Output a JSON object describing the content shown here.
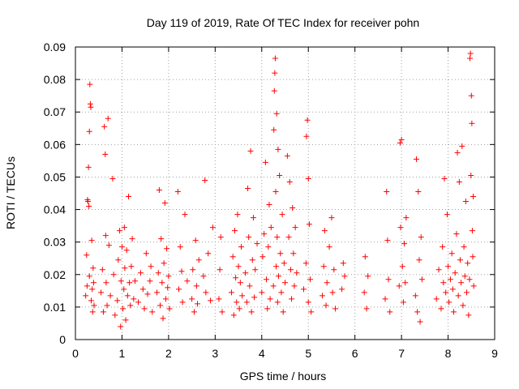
{
  "chart_data": {
    "type": "scatter",
    "title": "Day 119 of 2019, Rate Of TEC Index for receiver pohn",
    "xlabel": "GPS time / hours",
    "ylabel": "ROTI / TECUs",
    "xlim": [
      0,
      9
    ],
    "ylim": [
      0,
      0.09
    ],
    "x_ticks": [
      0,
      1,
      2,
      3,
      4,
      5,
      6,
      7,
      8,
      9
    ],
    "y_ticks": [
      0,
      0.01,
      0.02,
      0.03,
      0.04,
      0.05,
      0.06,
      0.07,
      0.08,
      0.09
    ],
    "x_tick_labels": [
      "0",
      "1",
      "2",
      "3",
      "4",
      "5",
      "6",
      "7",
      "8",
      "9"
    ],
    "y_tick_labels": [
      "0",
      "0.01",
      "0.02",
      "0.03",
      "0.04",
      "0.05",
      "0.06",
      "0.07",
      "0.08",
      "0.09"
    ],
    "grid": true,
    "marker": "+",
    "color": "#ff0000",
    "series": [
      {
        "name": "pohn",
        "points": [
          [
            0.22,
            0.0135
          ],
          [
            0.24,
            0.026
          ],
          [
            0.25,
            0.0165
          ],
          [
            0.26,
            0.043
          ],
          [
            0.27,
            0.0425
          ],
          [
            0.28,
            0.053
          ],
          [
            0.29,
            0.041
          ],
          [
            0.3,
            0.0195
          ],
          [
            0.3,
            0.064
          ],
          [
            0.31,
            0.0785
          ],
          [
            0.32,
            0.0725
          ],
          [
            0.33,
            0.0715
          ],
          [
            0.34,
            0.012
          ],
          [
            0.35,
            0.0305
          ],
          [
            0.36,
            0.0155
          ],
          [
            0.37,
            0.0085
          ],
          [
            0.38,
            0.022
          ],
          [
            0.39,
            0.0175
          ],
          [
            0.4,
            0.0105
          ],
          [
            0.55,
            0.0145
          ],
          [
            0.58,
            0.0215
          ],
          [
            0.6,
            0.0085
          ],
          [
            0.62,
            0.0655
          ],
          [
            0.64,
            0.057
          ],
          [
            0.65,
            0.032
          ],
          [
            0.66,
            0.0175
          ],
          [
            0.68,
            0.0105
          ],
          [
            0.7,
            0.068
          ],
          [
            0.72,
            0.029
          ],
          [
            0.75,
            0.0135
          ],
          [
            0.8,
            0.0495
          ],
          [
            0.82,
            0.02
          ],
          [
            0.85,
            0.0075
          ],
          [
            0.9,
            0.012
          ],
          [
            0.92,
            0.0245
          ],
          [
            0.95,
            0.0335
          ],
          [
            0.97,
            0.004
          ],
          [
            0.98,
            0.018
          ],
          [
            1.0,
            0.0285
          ],
          [
            1.02,
            0.0095
          ],
          [
            1.04,
            0.0155
          ],
          [
            1.05,
            0.0345
          ],
          [
            1.06,
            0.022
          ],
          [
            1.08,
            0.006
          ],
          [
            1.1,
            0.0275
          ],
          [
            1.12,
            0.0135
          ],
          [
            1.14,
            0.044
          ],
          [
            1.16,
            0.0175
          ],
          [
            1.18,
            0.0105
          ],
          [
            1.2,
            0.0225
          ],
          [
            1.22,
            0.031
          ],
          [
            1.25,
            0.0125
          ],
          [
            1.28,
            0.018
          ],
          [
            1.35,
            0.0115
          ],
          [
            1.4,
            0.0205
          ],
          [
            1.45,
            0.0155
          ],
          [
            1.48,
            0.0095
          ],
          [
            1.52,
            0.0265
          ],
          [
            1.55,
            0.014
          ],
          [
            1.6,
            0.018
          ],
          [
            1.62,
            0.0225
          ],
          [
            1.65,
            0.0085
          ],
          [
            1.75,
            0.0145
          ],
          [
            1.78,
            0.0205
          ],
          [
            1.8,
            0.046
          ],
          [
            1.82,
            0.0105
          ],
          [
            1.84,
            0.031
          ],
          [
            1.86,
            0.0175
          ],
          [
            1.88,
            0.0065
          ],
          [
            1.9,
            0.0235
          ],
          [
            1.92,
            0.042
          ],
          [
            1.94,
            0.0125
          ],
          [
            1.96,
            0.028
          ],
          [
            1.98,
            0.016
          ],
          [
            2.0,
            0.0195
          ],
          [
            2.02,
            0.0095
          ],
          [
            2.2,
            0.0455
          ],
          [
            2.22,
            0.0155
          ],
          [
            2.25,
            0.0285
          ],
          [
            2.28,
            0.021
          ],
          [
            2.3,
            0.0115
          ],
          [
            2.35,
            0.0385
          ],
          [
            2.4,
            0.018
          ],
          [
            2.5,
            0.0125
          ],
          [
            2.52,
            0.0215
          ],
          [
            2.55,
            0.0085
          ],
          [
            2.58,
            0.0305
          ],
          [
            2.6,
            0.0165
          ],
          [
            2.62,
            0.011
          ],
          [
            2.65,
            0.0245
          ],
          [
            2.75,
            0.0195
          ],
          [
            2.78,
            0.049
          ],
          [
            2.8,
            0.0145
          ],
          [
            2.85,
            0.0265
          ],
          [
            2.9,
            0.012
          ],
          [
            2.95,
            0.0345
          ],
          [
            3.08,
            0.0125
          ],
          [
            3.1,
            0.0215
          ],
          [
            3.12,
            0.0315
          ],
          [
            3.15,
            0.0085
          ],
          [
            3.35,
            0.0145
          ],
          [
            3.38,
            0.0255
          ],
          [
            3.4,
            0.0075
          ],
          [
            3.42,
            0.0335
          ],
          [
            3.44,
            0.019
          ],
          [
            3.46,
            0.0115
          ],
          [
            3.48,
            0.0385
          ],
          [
            3.5,
            0.0225
          ],
          [
            3.52,
            0.0095
          ],
          [
            3.54,
            0.0175
          ],
          [
            3.56,
            0.0285
          ],
          [
            3.58,
            0.0135
          ],
          [
            3.65,
            0.0205
          ],
          [
            3.68,
            0.0115
          ],
          [
            3.7,
            0.0465
          ],
          [
            3.72,
            0.0315
          ],
          [
            3.74,
            0.0165
          ],
          [
            3.76,
            0.058
          ],
          [
            3.78,
            0.0085
          ],
          [
            3.8,
            0.0245
          ],
          [
            3.82,
            0.0375
          ],
          [
            3.84,
            0.013
          ],
          [
            3.86,
            0.0215
          ],
          [
            3.9,
            0.0295
          ],
          [
            4.0,
            0.0145
          ],
          [
            4.02,
            0.0255
          ],
          [
            4.05,
            0.0325
          ],
          [
            4.08,
            0.0545
          ],
          [
            4.1,
            0.0185
          ],
          [
            4.12,
            0.0095
          ],
          [
            4.14,
            0.0285
          ],
          [
            4.16,
            0.0415
          ],
          [
            4.18,
            0.0125
          ],
          [
            4.2,
            0.0345
          ],
          [
            4.25,
            0.0165
          ],
          [
            4.26,
            0.0645
          ],
          [
            4.27,
            0.0765
          ],
          [
            4.28,
            0.082
          ],
          [
            4.29,
            0.0865
          ],
          [
            4.3,
            0.0455
          ],
          [
            4.31,
            0.0225
          ],
          [
            4.32,
            0.0695
          ],
          [
            4.33,
            0.0315
          ],
          [
            4.34,
            0.0115
          ],
          [
            4.35,
            0.0585
          ],
          [
            4.36,
            0.0195
          ],
          [
            4.38,
            0.0505
          ],
          [
            4.4,
            0.0265
          ],
          [
            4.42,
            0.0145
          ],
          [
            4.44,
            0.0385
          ],
          [
            4.46,
            0.0085
          ],
          [
            4.48,
            0.0235
          ],
          [
            4.5,
            0.0175
          ],
          [
            4.55,
            0.0565
          ],
          [
            4.58,
            0.0315
          ],
          [
            4.6,
            0.0485
          ],
          [
            4.62,
            0.0215
          ],
          [
            4.64,
            0.0125
          ],
          [
            4.66,
            0.0405
          ],
          [
            4.68,
            0.0265
          ],
          [
            4.7,
            0.0165
          ],
          [
            4.72,
            0.0345
          ],
          [
            4.75,
            0.0205
          ],
          [
            4.9,
            0.0155
          ],
          [
            4.95,
            0.0235
          ],
          [
            4.96,
            0.0625
          ],
          [
            4.98,
            0.0675
          ],
          [
            5.0,
            0.0495
          ],
          [
            5.0,
            0.0115
          ],
          [
            5.02,
            0.0355
          ],
          [
            5.04,
            0.0185
          ],
          [
            5.06,
            0.0085
          ],
          [
            5.3,
            0.0135
          ],
          [
            5.33,
            0.0225
          ],
          [
            5.35,
            0.0335
          ],
          [
            5.38,
            0.0105
          ],
          [
            5.4,
            0.0175
          ],
          [
            5.45,
            0.0285
          ],
          [
            5.5,
            0.0375
          ],
          [
            5.52,
            0.0145
          ],
          [
            5.55,
            0.0215
          ],
          [
            5.58,
            0.0095
          ],
          [
            5.72,
            0.0155
          ],
          [
            5.75,
            0.0235
          ],
          [
            5.78,
            0.0195
          ],
          [
            6.2,
            0.0145
          ],
          [
            6.22,
            0.0255
          ],
          [
            6.25,
            0.0095
          ],
          [
            6.28,
            0.0195
          ],
          [
            6.65,
            0.0125
          ],
          [
            6.68,
            0.0455
          ],
          [
            6.7,
            0.0305
          ],
          [
            6.72,
            0.0185
          ],
          [
            6.75,
            0.0085
          ],
          [
            6.95,
            0.0165
          ],
          [
            6.97,
            0.0605
          ],
          [
            6.98,
            0.0345
          ],
          [
            7.0,
            0.0615
          ],
          [
            7.02,
            0.0225
          ],
          [
            7.04,
            0.0115
          ],
          [
            7.06,
            0.0295
          ],
          [
            7.08,
            0.0175
          ],
          [
            7.1,
            0.0375
          ],
          [
            7.3,
            0.0135
          ],
          [
            7.32,
            0.0555
          ],
          [
            7.34,
            0.0085
          ],
          [
            7.36,
            0.0455
          ],
          [
            7.38,
            0.0245
          ],
          [
            7.4,
            0.0055
          ],
          [
            7.42,
            0.0315
          ],
          [
            7.44,
            0.0185
          ],
          [
            7.75,
            0.0125
          ],
          [
            7.8,
            0.0215
          ],
          [
            7.85,
            0.0095
          ],
          [
            7.88,
            0.0285
          ],
          [
            7.9,
            0.0175
          ],
          [
            7.92,
            0.0495
          ],
          [
            7.95,
            0.0145
          ],
          [
            7.98,
            0.0385
          ],
          [
            8.0,
            0.0225
          ],
          [
            8.02,
            0.0115
          ],
          [
            8.05,
            0.0185
          ],
          [
            8.08,
            0.0265
          ],
          [
            8.1,
            0.0155
          ],
          [
            8.12,
            0.0085
          ],
          [
            8.15,
            0.0205
          ],
          [
            8.18,
            0.0325
          ],
          [
            8.2,
            0.0575
          ],
          [
            8.22,
            0.0135
          ],
          [
            8.24,
            0.0485
          ],
          [
            8.26,
            0.0245
          ],
          [
            8.28,
            0.0175
          ],
          [
            8.3,
            0.0595
          ],
          [
            8.32,
            0.0105
          ],
          [
            8.34,
            0.0285
          ],
          [
            8.36,
            0.0195
          ],
          [
            8.38,
            0.0425
          ],
          [
            8.4,
            0.0145
          ],
          [
            8.42,
            0.0235
          ],
          [
            8.44,
            0.0075
          ],
          [
            8.46,
            0.0185
          ],
          [
            8.47,
            0.0865
          ],
          [
            8.48,
            0.088
          ],
          [
            8.49,
            0.0505
          ],
          [
            8.5,
            0.075
          ],
          [
            8.51,
            0.0665
          ],
          [
            8.52,
            0.0335
          ],
          [
            8.53,
            0.0255
          ],
          [
            8.54,
            0.044
          ],
          [
            8.55,
            0.0165
          ]
        ]
      }
    ]
  }
}
